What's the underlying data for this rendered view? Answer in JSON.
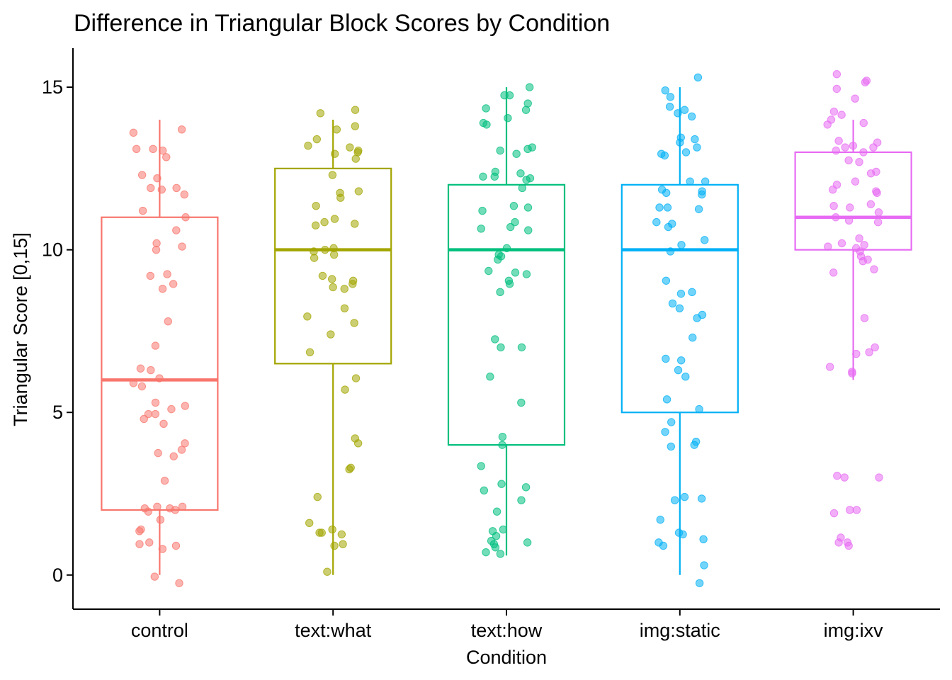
{
  "chart_data": {
    "type": "box",
    "title": "Difference in Triangular Block Scores by Condition",
    "xlabel": "Condition",
    "ylabel": "Triangular Score [0,15]",
    "ylim": [
      -1.05,
      16.2
    ],
    "yticks": [
      0,
      5,
      10,
      15
    ],
    "grid": false,
    "legend": "none",
    "overlay": "jittered points",
    "categories": [
      "control",
      "text:what",
      "text:how",
      "img:static",
      "img:ixv"
    ],
    "series": [
      {
        "category": "control",
        "color": "#F8766D",
        "box": {
          "min": 0,
          "q1": 2,
          "median": 6,
          "q3": 11,
          "max": 14
        },
        "points": [
          13.6,
          13.7,
          13.1,
          13.05,
          13.1,
          12.2,
          12.85,
          12.3,
          11.9,
          11.85,
          11.7,
          11.9,
          11.2,
          11.0,
          10.6,
          10.2,
          10.1,
          10.0,
          9.25,
          9.2,
          8.95,
          8.8,
          7.8,
          7.05,
          6.35,
          6.3,
          6.05,
          5.9,
          5.8,
          5.3,
          5.2,
          5.1,
          4.95,
          4.95,
          4.8,
          4.65,
          4.05,
          3.85,
          3.75,
          3.65,
          2.9,
          2.1,
          2.1,
          2.05,
          2.05,
          2.0,
          1.95,
          1.7,
          1.4,
          1.35,
          1.0,
          0.95,
          0.9,
          0.8,
          -0.05,
          -0.25
        ]
      },
      {
        "category": "text:what",
        "color": "#A3A500",
        "box": {
          "min": 0,
          "q1": 6.5,
          "median": 10,
          "q3": 12.5,
          "max": 14
        },
        "points": [
          14.3,
          14.2,
          13.8,
          13.7,
          13.4,
          13.2,
          13.15,
          13.05,
          13.0,
          12.95,
          12.8,
          12.3,
          11.8,
          11.75,
          11.6,
          11.35,
          10.95,
          10.85,
          10.8,
          10.75,
          10.05,
          10.0,
          9.95,
          9.85,
          9.75,
          9.2,
          9.1,
          9.05,
          8.95,
          8.85,
          8.8,
          8.2,
          7.95,
          7.75,
          7.4,
          6.85,
          6.05,
          5.7,
          4.2,
          4.05,
          3.3,
          3.25,
          2.4,
          1.6,
          1.4,
          1.3,
          1.3,
          1.25,
          0.95,
          0.9,
          0.1
        ]
      },
      {
        "category": "text:how",
        "color": "#00BF7D",
        "box": {
          "min": 0.6,
          "q1": 4,
          "median": 10,
          "q3": 12,
          "max": 15
        },
        "points": [
          15.0,
          14.75,
          14.75,
          14.5,
          14.35,
          14.3,
          14.05,
          13.9,
          13.85,
          13.15,
          13.1,
          13.05,
          12.95,
          12.4,
          12.35,
          12.25,
          12.25,
          12.2,
          12.15,
          11.9,
          11.35,
          11.3,
          11.2,
          10.85,
          10.7,
          10.65,
          10.6,
          10.05,
          9.85,
          9.8,
          9.7,
          9.35,
          9.3,
          9.25,
          9.05,
          8.95,
          8.7,
          7.25,
          7.0,
          7.0,
          6.1,
          5.3,
          4.25,
          4.0,
          3.35,
          2.8,
          2.7,
          2.6,
          2.3,
          1.95,
          1.4,
          1.35,
          1.2,
          1.05,
          1.0,
          0.95,
          0.85,
          0.7,
          0.65
        ]
      },
      {
        "category": "img:static",
        "color": "#00B0F6",
        "box": {
          "min": 0,
          "q1": 5,
          "median": 10,
          "q3": 12,
          "max": 15
        },
        "points": [
          15.3,
          14.9,
          14.7,
          14.4,
          14.3,
          14.2,
          14.1,
          13.45,
          13.4,
          13.3,
          13.15,
          13.0,
          12.95,
          12.9,
          12.1,
          12.1,
          11.85,
          11.8,
          11.75,
          11.7,
          11.3,
          11.3,
          11.25,
          10.85,
          10.8,
          10.7,
          10.3,
          10.15,
          9.95,
          9.05,
          8.7,
          8.65,
          8.35,
          8.2,
          8.0,
          7.9,
          7.3,
          6.65,
          6.6,
          6.3,
          6.1,
          5.4,
          5.1,
          4.7,
          4.4,
          4.1,
          4.0,
          3.95,
          2.4,
          2.35,
          2.3,
          1.7,
          1.3,
          1.25,
          1.1,
          1.0,
          0.9,
          0.3,
          -0.25
        ]
      },
      {
        "category": "img:ixv",
        "color": "#E76BF3",
        "box": {
          "min": 6,
          "q1": 10,
          "median": 11,
          "q3": 13,
          "max": 14
        },
        "points": [
          15.4,
          15.2,
          15.15,
          14.95,
          14.65,
          14.25,
          14.15,
          14.0,
          13.9,
          13.85,
          13.35,
          13.3,
          13.2,
          13.15,
          13.15,
          13.05,
          13.0,
          12.75,
          12.7,
          12.4,
          12.35,
          12.1,
          12.0,
          11.85,
          11.8,
          11.75,
          11.4,
          11.35,
          11.3,
          11.15,
          11.0,
          10.9,
          10.85,
          10.35,
          10.2,
          10.15,
          10.1,
          10.05,
          9.95,
          9.8,
          9.7,
          9.65,
          9.4,
          9.3,
          7.9,
          7.0,
          6.85,
          6.8,
          6.4,
          6.25,
          6.2,
          3.05,
          3.0,
          3.0,
          2.0,
          2.0,
          1.9,
          1.15,
          1.0,
          1.0,
          0.9
        ]
      }
    ]
  }
}
